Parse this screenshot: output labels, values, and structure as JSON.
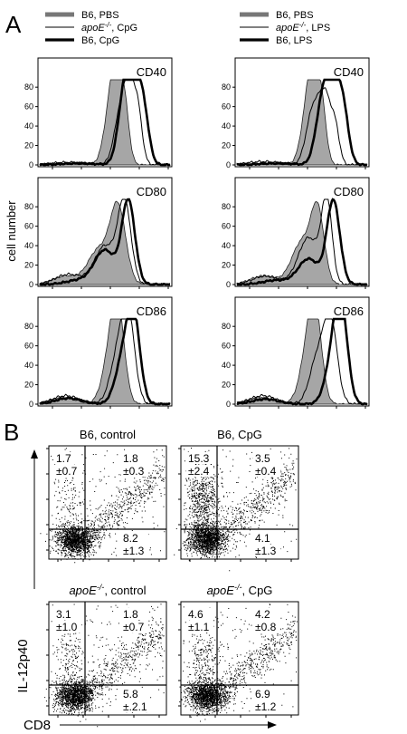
{
  "panel_a": {
    "letter": "A",
    "y_axis_label": "cell number",
    "y_ticks": [
      "0",
      "20",
      "40",
      "60",
      "80"
    ],
    "legend_left": [
      {
        "style": "filled-gray",
        "text": "B6,  PBS"
      },
      {
        "style": "thin",
        "text_italic": "apoE",
        "sup": "-/-",
        "text": ",  CpG"
      },
      {
        "style": "thick",
        "text": "B6,  CpG"
      }
    ],
    "legend_right": [
      {
        "style": "filled-gray",
        "text": "B6,  PBS"
      },
      {
        "style": "thin",
        "text_italic": "apoE",
        "sup": "-/-",
        "text": ",  LPS"
      },
      {
        "style": "thick",
        "text": "B6,  LPS"
      }
    ],
    "histograms": [
      {
        "marker": "CD40",
        "column": "left",
        "row": 0
      },
      {
        "marker": "CD40",
        "column": "right",
        "row": 0
      },
      {
        "marker": "CD80",
        "column": "left",
        "row": 1
      },
      {
        "marker": "CD80",
        "column": "right",
        "row": 1
      },
      {
        "marker": "CD86",
        "column": "left",
        "row": 2
      },
      {
        "marker": "CD86",
        "column": "right",
        "row": 2
      }
    ]
  },
  "panel_b": {
    "letter": "B",
    "y_axis_label": "IL-12p40",
    "x_axis_label": "CD8",
    "plots": [
      {
        "title": "B6, control",
        "ul": [
          "1.7",
          "±0.7"
        ],
        "ur": [
          "1.8",
          "±0.3"
        ],
        "lr": [
          "8.2",
          "±1.3"
        ]
      },
      {
        "title": "B6, CpG",
        "ul": [
          "15.3",
          "±2.4"
        ],
        "ur": [
          "3.5",
          "±0.4"
        ],
        "lr": [
          "4.1",
          "±1.3"
        ]
      },
      {
        "title_italic": "apoE",
        "sup": "-/-",
        "title": ", control",
        "ul": [
          "3.1",
          "±1.0"
        ],
        "ur": [
          "1.8",
          "±0.7"
        ],
        "lr": [
          "5.8",
          "±.2.1"
        ]
      },
      {
        "title_italic": "apoE",
        "sup": "-/-",
        "title": ", CpG",
        "ul": [
          "4.6",
          "±1.1"
        ],
        "ur": [
          "4.2",
          "±0.8"
        ],
        "lr": [
          "6.9",
          "±1.2"
        ]
      }
    ]
  },
  "colors": {
    "fill": "#a6a6a6",
    "line": "#000000"
  }
}
